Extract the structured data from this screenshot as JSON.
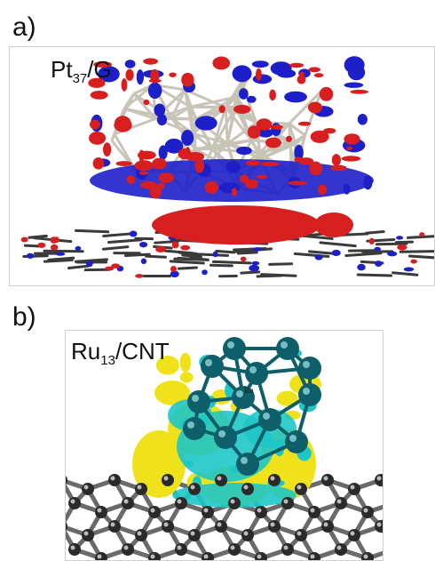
{
  "panel_a": {
    "label": "a)",
    "title_main": "Pt",
    "title_sub": "37",
    "title_rest": "/G",
    "colors": {
      "positive": "#d81f1f",
      "negative": "#1d1fc9",
      "bond": "#c9c4b8",
      "substrate": "#3a3a3a"
    }
  },
  "panel_b": {
    "label": "b)",
    "title_main": "Ru",
    "title_sub": "13",
    "title_rest": "/CNT",
    "atom_label": "Ru",
    "colors": {
      "positive": "#f0e21a",
      "negative": "#1ec7c7",
      "atom": "#0f5f6a",
      "substrate": "#2a2a2a"
    }
  }
}
